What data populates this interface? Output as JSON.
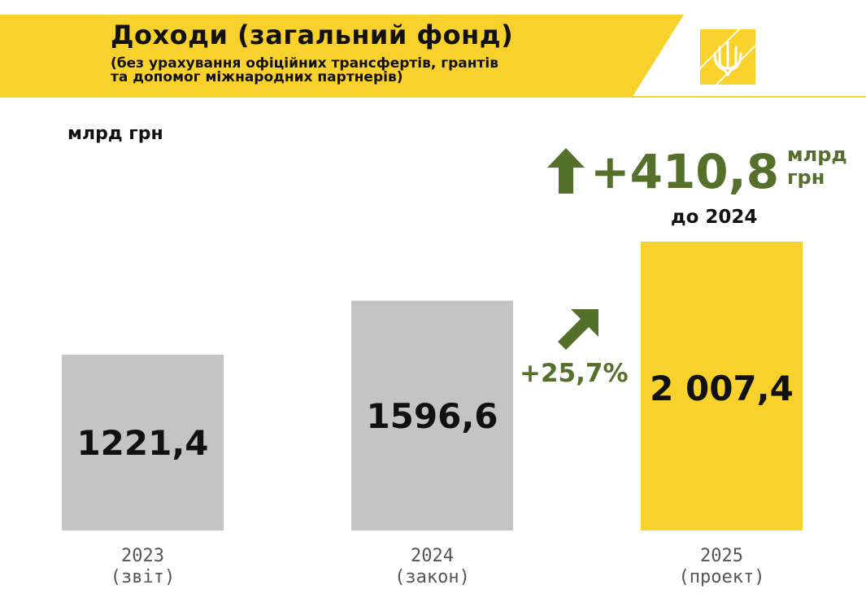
{
  "header": {
    "title": "Доходи (загальний фонд)",
    "subtitle_line1": "(без урахування офіційних трансфертів, грантів",
    "subtitle_line2": "та допомог міжнародних партнерів)",
    "logo": "trident-emblem-icon"
  },
  "colors": {
    "brand_yellow": "#f9d12c",
    "bar_gray": "#c4c4c4",
    "accent_green": "#55702a",
    "text": "#111111"
  },
  "chart_data": {
    "type": "bar",
    "title": "Доходи (загальний фонд)",
    "unit": "млрд грн",
    "categories": [
      "2023",
      "2024",
      "2025"
    ],
    "category_notes": [
      "(звіт)",
      "(закон)",
      "(проект)"
    ],
    "values": [
      1221.4,
      1596.6,
      2007.4
    ],
    "value_labels": [
      "1221,4",
      "1596,6",
      "2 007,4"
    ],
    "bar_colors": [
      "#c4c4c4",
      "#c4c4c4",
      "#f9d12c"
    ],
    "ylim": [
      0,
      2007.4
    ],
    "grid": false,
    "legend": "none",
    "annotations": {
      "growth_pct": "+25,7%",
      "growth_icon": "arrow-up-right-icon",
      "delta_value": "+410,8",
      "delta_unit": "млрд грн",
      "delta_ref": "до 2024",
      "delta_icon": "arrow-up-icon"
    }
  }
}
